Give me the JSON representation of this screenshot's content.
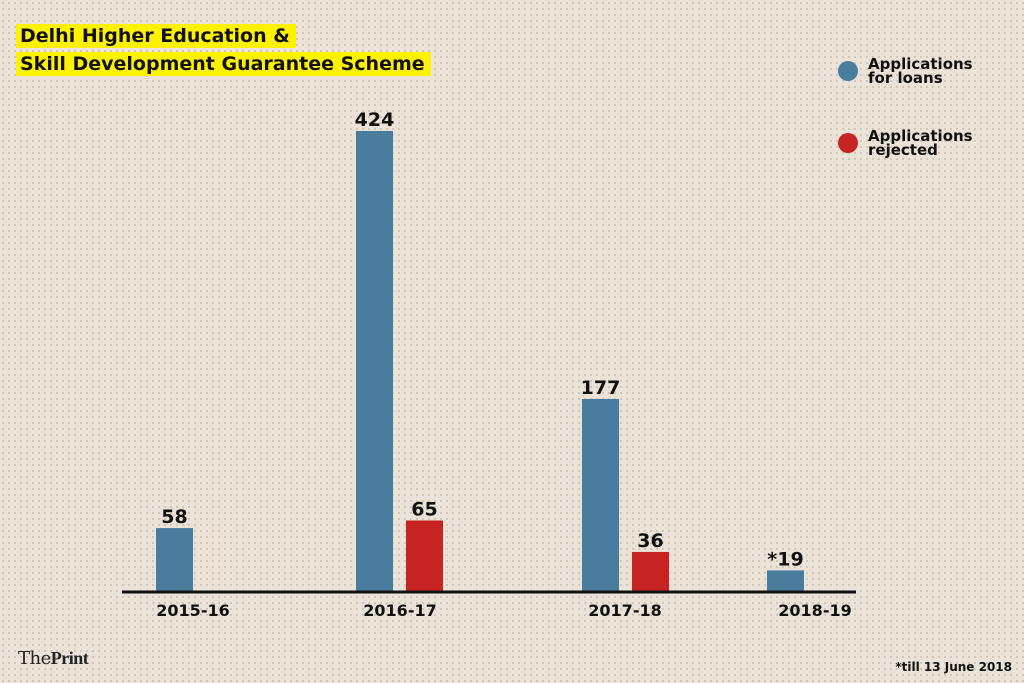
{
  "chart_data": {
    "type": "bar",
    "title_lines": [
      "Delhi Higher Education &",
      "Skill Development Guarantee Scheme"
    ],
    "categories": [
      "2015-16",
      "2016-17",
      "2017-18",
      "2018-19"
    ],
    "series": [
      {
        "name": "Applications for loans",
        "legend_lines": [
          "Applications",
          "for loans"
        ],
        "color": "#4a7c9e",
        "values": [
          58,
          424,
          177,
          19
        ],
        "labels": [
          "58",
          "424",
          "177",
          "*19"
        ]
      },
      {
        "name": "Applications rejected",
        "legend_lines": [
          "Applications",
          "rejected"
        ],
        "color": "#c82323",
        "values": [
          null,
          65,
          36,
          null
        ],
        "labels": [
          "",
          "65",
          "36",
          ""
        ]
      }
    ],
    "ylim": [
      0,
      424
    ],
    "legend_position": "top-right",
    "grid": false,
    "footnote": "*till 13 June 2018"
  },
  "brand": {
    "the": "The",
    "print": "Print"
  }
}
